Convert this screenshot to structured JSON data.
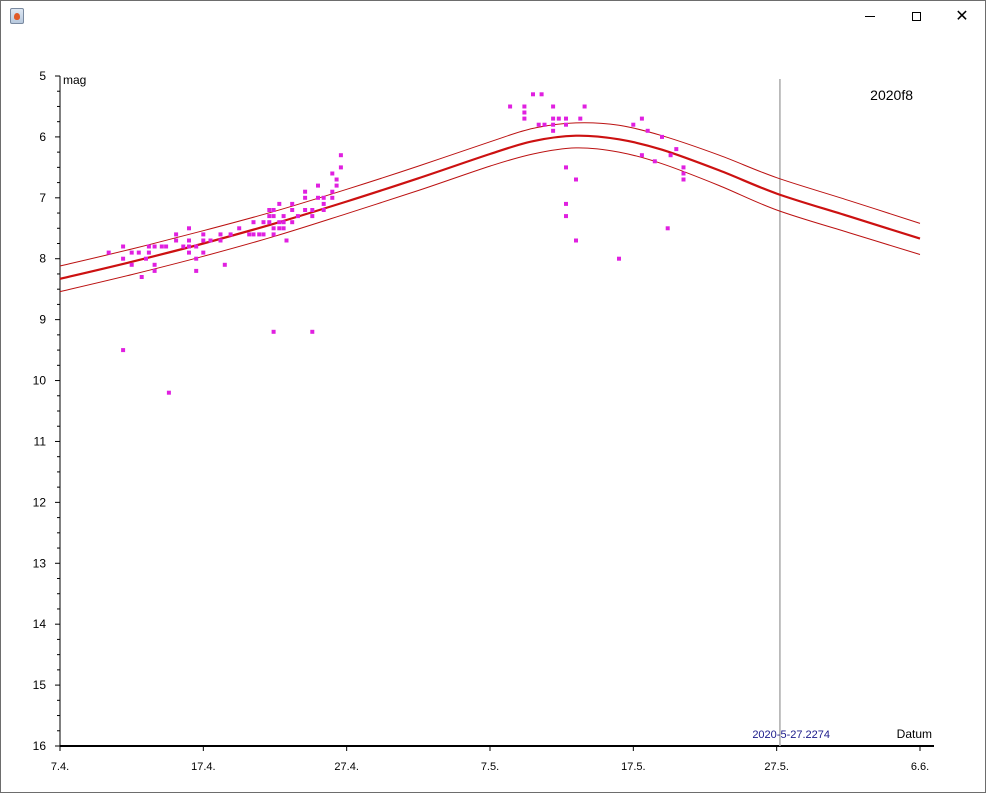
{
  "window": {
    "icon": "java-cup-icon",
    "buttons": {
      "minimize": "minimize-icon",
      "maximize": "maximize-icon",
      "close": "close-icon"
    }
  },
  "chart_data": {
    "type": "scatter",
    "title": "2020f8",
    "ylabel": "mag",
    "xlabel": "Datum",
    "cursor_readout": "2020-5-27.2274",
    "cursor_day": 50.2274,
    "x_axis_note": "day 0 = 7.4.2020",
    "xlim": [
      0,
      60
    ],
    "ylim": [
      16,
      5
    ],
    "y_reversed": true,
    "x_ticks": [
      {
        "day": 0,
        "label": "7.4."
      },
      {
        "day": 10,
        "label": "17.4."
      },
      {
        "day": 20,
        "label": "27.4."
      },
      {
        "day": 30,
        "label": "7.5."
      },
      {
        "day": 40,
        "label": "17.5."
      },
      {
        "day": 50,
        "label": "27.5."
      },
      {
        "day": 60,
        "label": "6.6."
      }
    ],
    "y_ticks": [
      "5",
      "6",
      "7",
      "8",
      "9",
      "10",
      "11",
      "12",
      "13",
      "14",
      "15",
      "16"
    ],
    "colors": {
      "observations": "#e020e0",
      "model": "#cc1111",
      "band": "#bb1111",
      "cursor": "#aaaaaa",
      "readout": "#1a1a8a"
    },
    "series": [
      {
        "name": "model",
        "kind": "line",
        "x": [
          0,
          5,
          10,
          15,
          20,
          25,
          30,
          33,
          36,
          39,
          42,
          46,
          50,
          55,
          60
        ],
        "y": [
          8.33,
          8.05,
          7.75,
          7.42,
          7.06,
          6.68,
          6.28,
          6.07,
          5.98,
          6.04,
          6.21,
          6.55,
          6.93,
          7.3,
          7.67
        ]
      },
      {
        "name": "upper-band",
        "kind": "line",
        "x": [
          0,
          5,
          10,
          15,
          20,
          25,
          30,
          33,
          36,
          39,
          42,
          46,
          50,
          55,
          60
        ],
        "y": [
          8.12,
          7.84,
          7.54,
          7.22,
          6.86,
          6.48,
          6.08,
          5.86,
          5.77,
          5.81,
          5.98,
          6.3,
          6.67,
          7.04,
          7.42
        ]
      },
      {
        "name": "lower-band",
        "kind": "line",
        "x": [
          0,
          5,
          10,
          15,
          20,
          25,
          30,
          33,
          36,
          39,
          42,
          46,
          50,
          55,
          60
        ],
        "y": [
          8.54,
          8.26,
          7.96,
          7.63,
          7.26,
          6.88,
          6.48,
          6.28,
          6.18,
          6.25,
          6.44,
          6.8,
          7.2,
          7.57,
          7.93
        ]
      },
      {
        "name": "observations",
        "kind": "scatter",
        "points": [
          [
            3.4,
            7.9
          ],
          [
            4.4,
            9.5
          ],
          [
            4.4,
            8.0
          ],
          [
            4.4,
            7.8
          ],
          [
            5.0,
            8.1
          ],
          [
            5.0,
            7.9
          ],
          [
            5.5,
            7.9
          ],
          [
            5.7,
            8.3
          ],
          [
            6.0,
            8.0
          ],
          [
            6.2,
            7.9
          ],
          [
            6.2,
            7.8
          ],
          [
            6.6,
            8.1
          ],
          [
            6.6,
            8.2
          ],
          [
            6.6,
            7.8
          ],
          [
            7.1,
            7.8
          ],
          [
            7.4,
            7.8
          ],
          [
            7.6,
            10.2
          ],
          [
            8.1,
            7.6
          ],
          [
            8.1,
            7.7
          ],
          [
            8.6,
            7.8
          ],
          [
            9.0,
            7.9
          ],
          [
            9.0,
            7.8
          ],
          [
            9.0,
            7.5
          ],
          [
            9.0,
            7.7
          ],
          [
            9.5,
            8.0
          ],
          [
            9.5,
            8.2
          ],
          [
            9.5,
            7.8
          ],
          [
            10.0,
            7.9
          ],
          [
            10.0,
            7.7
          ],
          [
            10.0,
            7.6
          ],
          [
            10.5,
            7.7
          ],
          [
            11.2,
            7.7
          ],
          [
            11.2,
            7.6
          ],
          [
            11.5,
            8.1
          ],
          [
            11.9,
            7.6
          ],
          [
            12.5,
            7.5
          ],
          [
            13.2,
            7.6
          ],
          [
            13.5,
            7.6
          ],
          [
            13.5,
            7.4
          ],
          [
            13.9,
            7.6
          ],
          [
            14.2,
            7.6
          ],
          [
            14.2,
            7.4
          ],
          [
            14.6,
            7.3
          ],
          [
            14.6,
            7.2
          ],
          [
            14.6,
            7.4
          ],
          [
            14.9,
            7.2
          ],
          [
            14.9,
            7.3
          ],
          [
            14.9,
            7.5
          ],
          [
            14.9,
            7.6
          ],
          [
            14.9,
            9.2
          ],
          [
            15.3,
            7.5
          ],
          [
            15.3,
            7.4
          ],
          [
            15.3,
            7.1
          ],
          [
            15.6,
            7.5
          ],
          [
            15.6,
            7.3
          ],
          [
            15.6,
            7.4
          ],
          [
            15.8,
            7.7
          ],
          [
            16.2,
            7.4
          ],
          [
            16.2,
            7.2
          ],
          [
            16.2,
            7.1
          ],
          [
            16.6,
            7.3
          ],
          [
            17.1,
            7.2
          ],
          [
            17.1,
            7.0
          ],
          [
            17.1,
            6.9
          ],
          [
            17.6,
            7.2
          ],
          [
            17.6,
            7.3
          ],
          [
            17.6,
            9.2
          ],
          [
            18.0,
            7.0
          ],
          [
            18.0,
            6.8
          ],
          [
            18.4,
            7.0
          ],
          [
            18.4,
            7.2
          ],
          [
            18.4,
            7.1
          ],
          [
            19.0,
            7.0
          ],
          [
            19.0,
            6.9
          ],
          [
            19.0,
            6.6
          ],
          [
            19.3,
            6.8
          ],
          [
            19.3,
            6.7
          ],
          [
            19.6,
            6.5
          ],
          [
            19.6,
            6.3
          ],
          [
            31.4,
            5.5
          ],
          [
            32.4,
            5.5
          ],
          [
            32.4,
            5.6
          ],
          [
            32.4,
            5.7
          ],
          [
            33.0,
            5.3
          ],
          [
            33.4,
            5.8
          ],
          [
            33.6,
            5.3
          ],
          [
            33.8,
            5.8
          ],
          [
            34.4,
            5.5
          ],
          [
            34.4,
            5.8
          ],
          [
            34.4,
            5.9
          ],
          [
            34.4,
            5.7
          ],
          [
            34.8,
            5.7
          ],
          [
            35.3,
            5.7
          ],
          [
            35.3,
            5.8
          ],
          [
            35.3,
            6.5
          ],
          [
            35.3,
            7.1
          ],
          [
            35.3,
            7.3
          ],
          [
            36.0,
            6.7
          ],
          [
            36.0,
            7.7
          ],
          [
            36.3,
            5.7
          ],
          [
            36.6,
            5.5
          ],
          [
            39.0,
            8.0
          ],
          [
            40.0,
            5.8
          ],
          [
            40.6,
            5.7
          ],
          [
            40.6,
            6.3
          ],
          [
            41.0,
            5.9
          ],
          [
            41.5,
            6.4
          ],
          [
            42.0,
            6.0
          ],
          [
            42.4,
            7.5
          ],
          [
            42.6,
            6.3
          ],
          [
            43.0,
            6.2
          ],
          [
            43.5,
            6.5
          ],
          [
            43.5,
            6.6
          ],
          [
            43.5,
            6.7
          ]
        ]
      }
    ]
  }
}
